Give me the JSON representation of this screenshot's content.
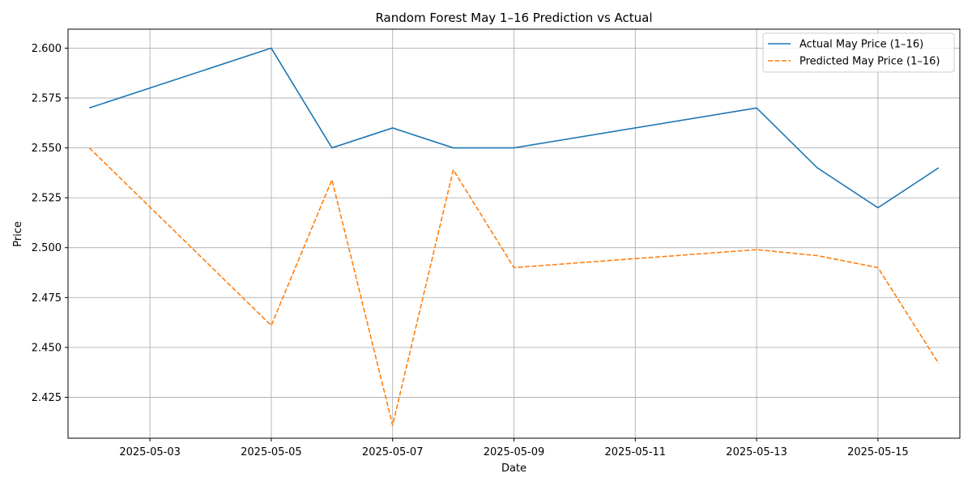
{
  "chart_data": {
    "type": "line",
    "title": "Random Forest May 1–16 Prediction vs Actual",
    "xlabel": "Date",
    "ylabel": "Price",
    "x": [
      "2025-05-02",
      "2025-05-05",
      "2025-05-06",
      "2025-05-07",
      "2025-05-08",
      "2025-05-09",
      "2025-05-13",
      "2025-05-14",
      "2025-05-15",
      "2025-05-16"
    ],
    "x_ticks": [
      "2025-05-03",
      "2025-05-05",
      "2025-05-07",
      "2025-05-09",
      "2025-05-11",
      "2025-05-13",
      "2025-05-15"
    ],
    "y_ticks": [
      2.425,
      2.45,
      2.475,
      2.5,
      2.525,
      2.55,
      2.575,
      2.6
    ],
    "y_tick_labels": [
      "2.425",
      "2.450",
      "2.475",
      "2.500",
      "2.525",
      "2.550",
      "2.575",
      "2.600"
    ],
    "xlim": [
      "2025-05-01T15:36",
      "2025-05-16T08:24"
    ],
    "ylim": [
      2.4045,
      2.6095
    ],
    "grid": true,
    "legend_position": "top-right",
    "series": [
      {
        "name": "Actual May Price (1–16)",
        "color": "#1f77b4",
        "style": "solid",
        "values": [
          2.57,
          2.6,
          2.55,
          2.56,
          2.55,
          2.55,
          2.57,
          2.54,
          2.52,
          2.54
        ]
      },
      {
        "name": "Predicted May Price (1–16)",
        "color": "#ff7f0e",
        "style": "dashed",
        "values": [
          2.55,
          2.461,
          2.534,
          2.411,
          2.539,
          2.49,
          2.499,
          2.496,
          2.49,
          2.442
        ]
      }
    ]
  }
}
